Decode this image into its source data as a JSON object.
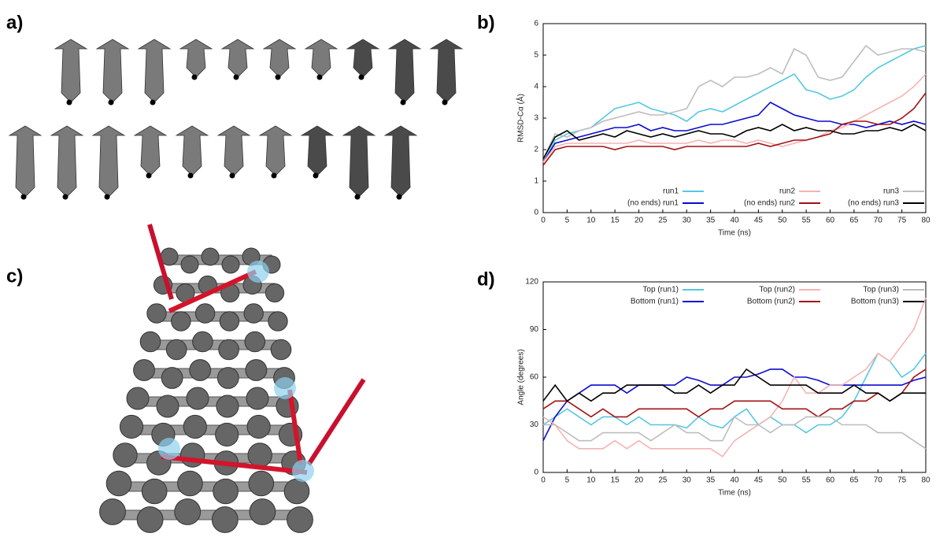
{
  "panel_labels": [
    "a)",
    "b)",
    "c)",
    "d)"
  ],
  "chart_data": [
    {
      "type": "line",
      "xlabel": "Time (ns)",
      "ylabel": "RMSD-Cα (Å)",
      "xlim": [
        0,
        80
      ],
      "xticks": [
        0,
        5,
        10,
        15,
        20,
        25,
        30,
        35,
        40,
        45,
        50,
        55,
        60,
        65,
        70,
        75,
        80
      ],
      "ylim": [
        0,
        6
      ],
      "yticks": [
        0,
        1,
        2,
        3,
        4,
        5,
        6
      ],
      "legend": "bottom",
      "x": [
        0,
        2.5,
        5,
        7.5,
        10,
        12.5,
        15,
        17.5,
        20,
        22.5,
        25,
        27.5,
        30,
        32.5,
        35,
        37.5,
        40,
        42.5,
        45,
        47.5,
        50,
        52.5,
        55,
        57.5,
        60,
        62.5,
        65,
        67.5,
        70,
        72.5,
        75,
        77.5,
        80
      ],
      "series": [
        {
          "name": "run1",
          "color": "#55c8e2",
          "values": [
            1.6,
            2.3,
            2.5,
            2.6,
            2.7,
            3.0,
            3.3,
            3.4,
            3.5,
            3.3,
            3.2,
            3.1,
            2.9,
            3.2,
            3.3,
            3.2,
            3.4,
            3.6,
            3.8,
            4.0,
            4.2,
            4.4,
            3.9,
            3.8,
            3.6,
            3.7,
            3.9,
            4.3,
            4.6,
            4.8,
            5.0,
            5.2,
            5.3
          ]
        },
        {
          "name": "(no ends) run1",
          "color": "#0a0ad0",
          "values": [
            1.6,
            2.2,
            2.3,
            2.4,
            2.5,
            2.6,
            2.7,
            2.7,
            2.8,
            2.6,
            2.7,
            2.6,
            2.6,
            2.7,
            2.8,
            2.8,
            2.9,
            3.0,
            3.1,
            3.5,
            3.3,
            3.1,
            3.0,
            2.9,
            2.9,
            2.8,
            2.8,
            2.7,
            2.8,
            2.9,
            2.8,
            2.9,
            2.8
          ]
        },
        {
          "name": "run2",
          "color": "#f5b3b3",
          "values": [
            1.6,
            2.1,
            2.2,
            2.2,
            2.2,
            2.2,
            2.2,
            2.2,
            2.3,
            2.2,
            2.2,
            2.2,
            2.2,
            2.3,
            2.2,
            2.3,
            2.3,
            2.2,
            2.3,
            2.2,
            2.1,
            2.2,
            2.3,
            2.4,
            2.6,
            2.7,
            2.9,
            3.1,
            3.3,
            3.5,
            3.7,
            4.0,
            4.4
          ]
        },
        {
          "name": "(no ends) run2",
          "color": "#a31212",
          "values": [
            1.5,
            2.0,
            2.1,
            2.1,
            2.1,
            2.1,
            2.0,
            2.1,
            2.1,
            2.1,
            2.1,
            2.0,
            2.1,
            2.1,
            2.1,
            2.1,
            2.1,
            2.1,
            2.2,
            2.1,
            2.2,
            2.3,
            2.3,
            2.4,
            2.5,
            2.8,
            2.9,
            2.9,
            2.8,
            2.8,
            3.0,
            3.3,
            3.8
          ]
        },
        {
          "name": "run3",
          "color": "#bdbdbd",
          "values": [
            1.7,
            2.5,
            2.4,
            2.6,
            2.7,
            2.9,
            3.0,
            3.1,
            3.2,
            3.1,
            3.1,
            3.2,
            3.3,
            4.0,
            4.2,
            4.0,
            4.3,
            4.3,
            4.4,
            4.6,
            4.4,
            5.2,
            5.0,
            4.3,
            4.2,
            4.3,
            4.8,
            5.3,
            5.0,
            5.1,
            5.2,
            5.2,
            5.1
          ]
        },
        {
          "name": "(no ends) run3",
          "color": "#000000",
          "values": [
            1.7,
            2.4,
            2.6,
            2.3,
            2.4,
            2.5,
            2.4,
            2.6,
            2.5,
            2.4,
            2.5,
            2.4,
            2.5,
            2.6,
            2.5,
            2.5,
            2.4,
            2.6,
            2.7,
            2.6,
            2.8,
            2.6,
            2.7,
            2.6,
            2.6,
            2.5,
            2.5,
            2.6,
            2.6,
            2.7,
            2.6,
            2.8,
            2.6
          ]
        }
      ]
    },
    {
      "type": "line",
      "xlabel": "Time (ns)",
      "ylabel": "Angle (degrees)",
      "xlim": [
        0,
        80
      ],
      "xticks": [
        0,
        5,
        10,
        15,
        20,
        25,
        30,
        35,
        40,
        45,
        50,
        55,
        60,
        65,
        70,
        75,
        80
      ],
      "ylim": [
        0,
        120
      ],
      "yticks": [
        0,
        30,
        60,
        90,
        120
      ],
      "legend": "top",
      "x": [
        0,
        2.5,
        5,
        7.5,
        10,
        12.5,
        15,
        17.5,
        20,
        22.5,
        25,
        27.5,
        30,
        32.5,
        35,
        37.5,
        40,
        42.5,
        45,
        47.5,
        50,
        52.5,
        55,
        57.5,
        60,
        62.5,
        65,
        67.5,
        70,
        72.5,
        75,
        77.5,
        80
      ],
      "series": [
        {
          "name": "Top (run1)",
          "color": "#55c8e2",
          "values": [
            30,
            35,
            40,
            35,
            30,
            35,
            35,
            30,
            35,
            30,
            30,
            30,
            28,
            35,
            30,
            28,
            35,
            40,
            30,
            35,
            30,
            30,
            25,
            30,
            30,
            35,
            45,
            60,
            75,
            70,
            60,
            65,
            75
          ]
        },
        {
          "name": "Bottom (run1)",
          "color": "#0a0ad0",
          "values": [
            20,
            35,
            45,
            50,
            55,
            55,
            55,
            50,
            55,
            55,
            55,
            55,
            60,
            58,
            55,
            55,
            60,
            60,
            62,
            65,
            65,
            60,
            60,
            58,
            55,
            55,
            55,
            55,
            55,
            55,
            55,
            58,
            60
          ]
        },
        {
          "name": "Top (run2)",
          "color": "#f5b3b3",
          "values": [
            35,
            30,
            20,
            15,
            15,
            15,
            20,
            15,
            20,
            15,
            15,
            15,
            15,
            15,
            15,
            10,
            20,
            25,
            30,
            35,
            45,
            60,
            50,
            50,
            55,
            55,
            60,
            65,
            75,
            70,
            80,
            90,
            110
          ]
        },
        {
          "name": "Bottom (run2)",
          "color": "#a31212",
          "values": [
            40,
            45,
            45,
            40,
            35,
            40,
            35,
            35,
            40,
            40,
            40,
            40,
            40,
            35,
            40,
            40,
            45,
            45,
            45,
            45,
            40,
            40,
            40,
            35,
            40,
            40,
            45,
            45,
            50,
            45,
            50,
            60,
            65
          ]
        },
        {
          "name": "Top (run3)",
          "color": "#bdbdbd",
          "values": [
            30,
            30,
            25,
            20,
            20,
            25,
            25,
            25,
            25,
            20,
            25,
            30,
            25,
            25,
            20,
            20,
            35,
            30,
            30,
            25,
            30,
            30,
            35,
            35,
            35,
            30,
            30,
            30,
            25,
            25,
            25,
            20,
            15
          ]
        },
        {
          "name": "Bottom (run3)",
          "color": "#000000",
          "values": [
            45,
            55,
            45,
            50,
            45,
            50,
            50,
            55,
            55,
            55,
            55,
            50,
            50,
            55,
            50,
            55,
            55,
            65,
            60,
            55,
            55,
            55,
            55,
            50,
            50,
            50,
            55,
            50,
            50,
            45,
            50,
            50,
            50
          ]
        }
      ]
    }
  ]
}
